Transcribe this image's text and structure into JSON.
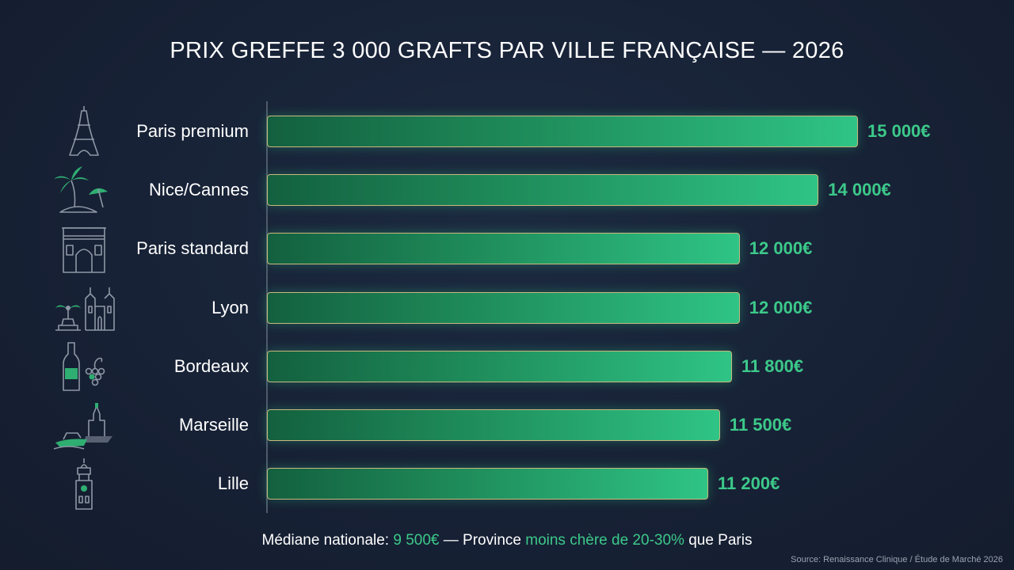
{
  "chart_data": {
    "type": "bar",
    "orientation": "horizontal",
    "title": "PRIX GREFFE 3 000 GRAFTS PAR VILLE FRANÇAISE — 2026",
    "xlabel": "",
    "ylabel": "",
    "xlim": [
      0,
      15400
    ],
    "grid": false,
    "categories": [
      "Paris premium",
      "Nice/Cannes",
      "Paris standard",
      "Lyon",
      "Bordeaux",
      "Marseille",
      "Lille"
    ],
    "values": [
      15000,
      14000,
      12000,
      12000,
      11800,
      11500,
      11200
    ],
    "value_labels": [
      "15 000€",
      "14 000€",
      "12 000€",
      "12 000€",
      "11 800€",
      "11 500€",
      "11 200€"
    ],
    "icons": [
      "eiffel-tower-icon",
      "palm-beach-icon",
      "arc-de-triomphe-icon",
      "fountain-basilica-icon",
      "wine-grapes-icon",
      "boat-church-icon",
      "belfry-icon"
    ]
  },
  "footnote": {
    "part1": "Médiane nationale: ",
    "hl1": "9 500€",
    "part2": " — Province ",
    "hl2": "moins chère de 20-30%",
    "part3": " que Paris"
  },
  "source": "Source: Renaissance Clinique / Étude de Marché 2026",
  "colors": {
    "background": "#182236",
    "bar_start": "#13603f",
    "bar_end": "#2fc486",
    "bar_border": "#c9b77e",
    "value_text": "#3cc98a"
  }
}
